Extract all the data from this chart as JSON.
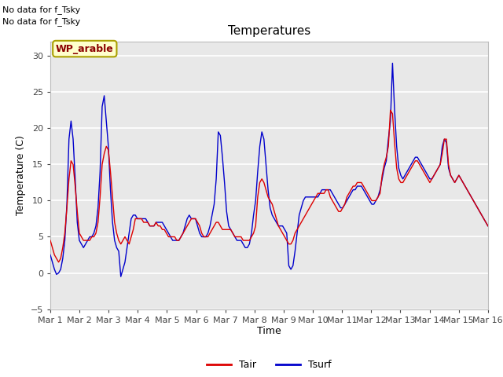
{
  "title": "Temperatures",
  "xlabel": "Time",
  "ylabel": "Temperature (C)",
  "ylim": [
    -5,
    32
  ],
  "yticks": [
    -5,
    0,
    5,
    10,
    15,
    20,
    25,
    30
  ],
  "x_labels": [
    "Mar 1",
    "Mar 2",
    "Mar 3",
    "Mar 4",
    "Mar 5",
    "Mar 6",
    "Mar 7",
    "Mar 8",
    "Mar 9",
    "Mar 10",
    "Mar 11",
    "Mar 12",
    "Mar 13",
    "Mar 14",
    "Mar 15",
    "Mar 16"
  ],
  "note_line1": "No data for f_Tsky",
  "note_line2": "No data for f_Tsky",
  "wp_label": "WP_arable",
  "bg_color": "#e8e8e8",
  "line_color_tair": "#dd0000",
  "line_color_tsurf": "#0000cc",
  "tair": [
    4.5,
    3.5,
    2.5,
    2.0,
    1.5,
    2.0,
    3.5,
    5.5,
    9.0,
    13.0,
    15.5,
    15.0,
    12.0,
    8.5,
    5.5,
    5.0,
    4.5,
    4.5,
    4.5,
    4.5,
    5.0,
    5.0,
    5.5,
    7.0,
    10.5,
    15.0,
    16.5,
    17.5,
    17.0,
    14.0,
    10.5,
    7.0,
    5.5,
    4.5,
    4.0,
    4.5,
    5.0,
    4.5,
    4.0,
    5.0,
    6.0,
    7.5,
    7.5,
    7.5,
    7.5,
    7.0,
    7.0,
    7.0,
    6.5,
    6.5,
    6.5,
    7.0,
    6.5,
    6.5,
    6.0,
    6.0,
    5.5,
    5.0,
    5.0,
    5.0,
    5.0,
    4.5,
    4.5,
    5.0,
    5.5,
    6.0,
    6.5,
    7.0,
    7.5,
    7.5,
    7.5,
    7.0,
    6.5,
    5.5,
    5.0,
    5.0,
    5.0,
    5.5,
    6.0,
    6.5,
    7.0,
    7.0,
    6.5,
    6.0,
    6.0,
    6.0,
    6.0,
    6.0,
    5.5,
    5.0,
    5.0,
    5.0,
    5.0,
    4.5,
    4.5,
    4.5,
    4.5,
    5.0,
    5.5,
    6.5,
    10.5,
    12.5,
    13.0,
    12.5,
    11.5,
    10.5,
    10.0,
    9.5,
    8.5,
    7.5,
    6.5,
    6.0,
    5.5,
    5.0,
    4.5,
    4.0,
    4.0,
    4.5,
    5.5,
    6.0,
    6.5,
    7.0,
    7.5,
    8.0,
    8.5,
    9.0,
    9.5,
    10.0,
    10.5,
    11.0,
    11.0,
    11.0,
    11.0,
    11.5,
    11.5,
    10.5,
    10.0,
    9.5,
    9.0,
    8.5,
    8.5,
    9.0,
    9.5,
    10.5,
    11.0,
    11.5,
    12.0,
    12.0,
    12.5,
    12.5,
    12.5,
    12.0,
    11.5,
    11.0,
    10.5,
    10.0,
    10.0,
    10.0,
    10.5,
    11.0,
    13.5,
    15.0,
    16.0,
    17.5,
    22.5,
    22.0,
    18.0,
    14.5,
    13.0,
    12.5,
    12.5,
    13.0,
    13.5,
    14.0,
    14.5,
    15.0,
    15.5,
    15.5,
    15.0,
    14.5,
    14.0,
    13.5,
    13.0,
    12.5,
    13.0,
    13.5,
    14.0,
    14.5,
    15.0,
    16.5,
    18.5,
    18.5,
    15.0,
    13.5,
    13.0,
    12.5,
    13.0,
    13.5,
    13.0,
    12.5,
    12.0,
    11.5,
    11.0,
    10.5,
    10.0,
    9.5,
    9.0,
    8.5,
    8.0,
    7.5,
    7.0,
    6.5
  ],
  "tsurf": [
    2.5,
    1.5,
    0.5,
    -0.2,
    0.0,
    0.5,
    2.0,
    4.5,
    9.5,
    18.5,
    21.0,
    18.5,
    13.0,
    7.0,
    4.5,
    4.0,
    3.5,
    4.0,
    4.5,
    5.0,
    5.0,
    5.5,
    6.5,
    9.0,
    14.0,
    23.0,
    24.5,
    21.0,
    17.5,
    11.5,
    7.0,
    4.5,
    3.5,
    3.0,
    -0.5,
    0.5,
    1.5,
    3.5,
    5.5,
    7.5,
    8.0,
    8.0,
    7.5,
    7.5,
    7.5,
    7.5,
    7.5,
    7.0,
    6.5,
    6.5,
    6.5,
    7.0,
    7.0,
    7.0,
    7.0,
    6.5,
    6.0,
    5.5,
    5.0,
    4.5,
    4.5,
    4.5,
    4.5,
    5.0,
    5.5,
    6.5,
    7.5,
    8.0,
    7.5,
    7.5,
    7.5,
    6.5,
    5.5,
    5.0,
    5.0,
    5.0,
    5.5,
    6.5,
    8.0,
    9.5,
    13.0,
    19.5,
    19.0,
    16.0,
    12.5,
    8.5,
    6.5,
    6.0,
    5.5,
    5.0,
    4.5,
    4.5,
    4.5,
    4.0,
    3.5,
    3.5,
    4.0,
    5.5,
    8.0,
    10.0,
    14.0,
    17.5,
    19.5,
    18.5,
    15.0,
    11.5,
    9.0,
    8.0,
    7.5,
    7.0,
    6.5,
    6.5,
    6.5,
    6.0,
    5.5,
    1.0,
    0.5,
    1.0,
    3.0,
    5.5,
    8.0,
    9.0,
    10.0,
    10.5,
    10.5,
    10.5,
    10.5,
    10.5,
    10.5,
    10.5,
    11.0,
    11.5,
    11.5,
    11.5,
    11.5,
    11.5,
    11.0,
    10.5,
    10.0,
    9.5,
    9.0,
    9.0,
    9.5,
    10.0,
    10.5,
    11.0,
    11.5,
    11.5,
    12.0,
    12.0,
    12.0,
    11.5,
    11.0,
    10.5,
    10.0,
    9.5,
    9.5,
    10.0,
    10.5,
    11.5,
    13.0,
    14.5,
    15.5,
    18.5,
    21.0,
    29.0,
    22.5,
    17.5,
    14.5,
    13.5,
    13.0,
    13.5,
    14.0,
    14.5,
    15.0,
    15.5,
    16.0,
    16.0,
    15.5,
    15.0,
    14.5,
    14.0,
    13.5,
    13.0,
    13.0,
    13.5,
    14.0,
    14.5,
    15.0,
    17.5,
    18.5,
    18.0,
    14.5,
    13.5,
    13.0,
    12.5,
    13.0,
    13.5,
    13.0,
    12.5,
    12.0,
    11.5,
    11.0,
    10.5,
    10.0,
    9.5,
    9.0,
    8.5,
    8.0,
    7.5,
    7.0,
    6.5
  ]
}
